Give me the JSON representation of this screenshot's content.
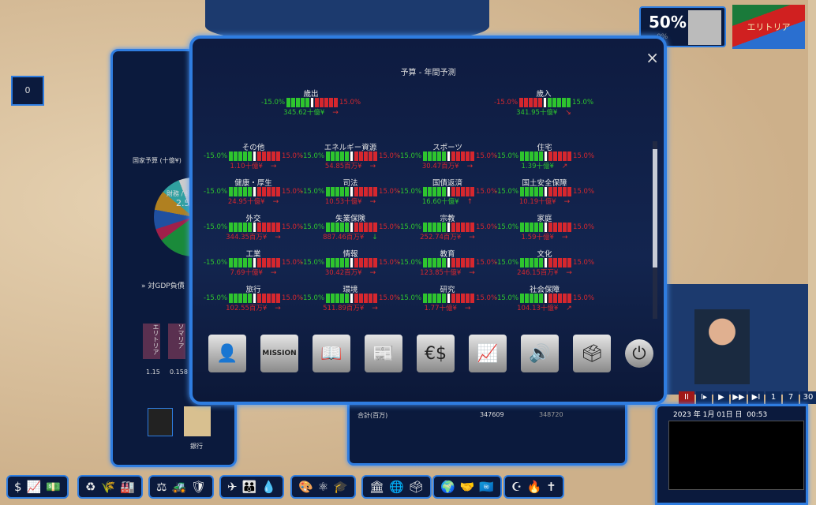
{
  "modal": {
    "title": "予算 - 年間予測",
    "close": "×"
  },
  "expense": {
    "label": "歳出",
    "min": "-15.0%",
    "max": "15.0%",
    "value": "345.62十億¥",
    "value_color": "#2ec52e",
    "arrow": "→",
    "position": 0
  },
  "revenue": {
    "label": "歳入",
    "min": "-15.0%",
    "max": "15.0%",
    "value": "341.95十億¥",
    "value_color": "#2ec52e",
    "arrow": "↘",
    "position": 0
  },
  "items": [
    {
      "label": "その他",
      "value": "1.10十億¥",
      "color": "#d6272e",
      "arrow": "→"
    },
    {
      "label": "エネルギー資源",
      "value": "54.85百万¥",
      "color": "#d6272e",
      "arrow": "→"
    },
    {
      "label": "スポーツ",
      "value": "30.47百万¥",
      "color": "#d6272e",
      "arrow": "→"
    },
    {
      "label": "住宅",
      "value": "1.39十億¥",
      "color": "#2ec52e",
      "arrow": "↗"
    },
    {
      "label": "健康・厚生",
      "value": "24.95十億¥",
      "color": "#d6272e",
      "arrow": "→"
    },
    {
      "label": "司法",
      "value": "10.53十億¥",
      "color": "#d6272e",
      "arrow": "→"
    },
    {
      "label": "国債返済",
      "value": "16.60十億¥",
      "color": "#2ec52e",
      "arrow": "↑"
    },
    {
      "label": "国土安全保障",
      "value": "10.19十億¥",
      "color": "#d6272e",
      "arrow": "→"
    },
    {
      "label": "外交",
      "value": "344.35百万¥",
      "color": "#d6272e",
      "arrow": "→"
    },
    {
      "label": "失業保険",
      "value": "887.46百万¥",
      "color": "#d6272e",
      "arrow": "↓"
    },
    {
      "label": "宗教",
      "value": "252.74百万¥",
      "color": "#d6272e",
      "arrow": "→"
    },
    {
      "label": "家庭",
      "value": "1.59十億¥",
      "color": "#d6272e",
      "arrow": "→"
    },
    {
      "label": "工業",
      "value": "7.69十億¥",
      "color": "#d6272e",
      "arrow": "→"
    },
    {
      "label": "情報",
      "value": "30.42百万¥",
      "color": "#d6272e",
      "arrow": "→"
    },
    {
      "label": "教育",
      "value": "123.85十億¥",
      "color": "#d6272e",
      "arrow": "→"
    },
    {
      "label": "文化",
      "value": "246.15百万¥",
      "color": "#d6272e",
      "arrow": "→"
    },
    {
      "label": "旅行",
      "value": "102.55百万¥",
      "color": "#d6272e",
      "arrow": "→"
    },
    {
      "label": "環境",
      "value": "511.89百万¥",
      "color": "#d6272e",
      "arrow": "→"
    },
    {
      "label": "研究",
      "value": "1.77十億¥",
      "color": "#d6272e",
      "arrow": "→"
    },
    {
      "label": "社会保障",
      "value": "104.13十億¥",
      "color": "#d6272e",
      "arrow": "↗"
    }
  ],
  "range": {
    "min": "-15.0%",
    "max": "15.0%"
  },
  "bottom_icons": [
    {
      "name": "minister",
      "glyph": "👤"
    },
    {
      "name": "mission-folder",
      "glyph": "MISSION"
    },
    {
      "name": "book",
      "glyph": "📖"
    },
    {
      "name": "newspaper",
      "glyph": "📰"
    },
    {
      "name": "currency",
      "glyph": "€$"
    },
    {
      "name": "stats-chart",
      "glyph": "📈"
    },
    {
      "name": "speaker",
      "glyph": "🔊"
    },
    {
      "name": "vote-box",
      "glyph": "🗳"
    },
    {
      "name": "power",
      "glyph": "⏻"
    }
  ],
  "left_panel": {
    "budget_label": "国家予算 (十億¥)",
    "pie_label": "財務 / 経",
    "pie_value": "2.5",
    "debt_label": "対GDP負債",
    "countries": [
      {
        "name": "エリトリア",
        "value": "1.15"
      },
      {
        "name": "ソマリア",
        "value": "0.158"
      }
    ],
    "bank_label": "銀行"
  },
  "table": {
    "total_label": "合計(百万)",
    "col1": "347609",
    "col2": "348720"
  },
  "top_right": {
    "approval": "50%",
    "approval_sub": "0%",
    "country": "エリトリア"
  },
  "time": {
    "date": "2023 年 1月 01日 日",
    "clock": "00:53",
    "speeds": [
      "II",
      "I▸",
      "▶",
      "▶▶",
      "▶I",
      "1",
      "7",
      "30"
    ]
  },
  "counter": "0",
  "toolbar_groups": [
    [
      "$",
      "📈",
      "💵"
    ],
    [
      "♻",
      "🌾",
      "🏭"
    ],
    [
      "⚖",
      "🚜",
      "🛡"
    ],
    [
      "✈",
      "👪",
      "💧"
    ],
    [
      "🎨",
      "⚛",
      "🎓"
    ],
    [
      "🏛",
      "🌐",
      "🗳"
    ],
    [
      "🌍",
      "🤝",
      "🇺🇳"
    ],
    [
      "☪",
      "🔥",
      "✝"
    ]
  ]
}
